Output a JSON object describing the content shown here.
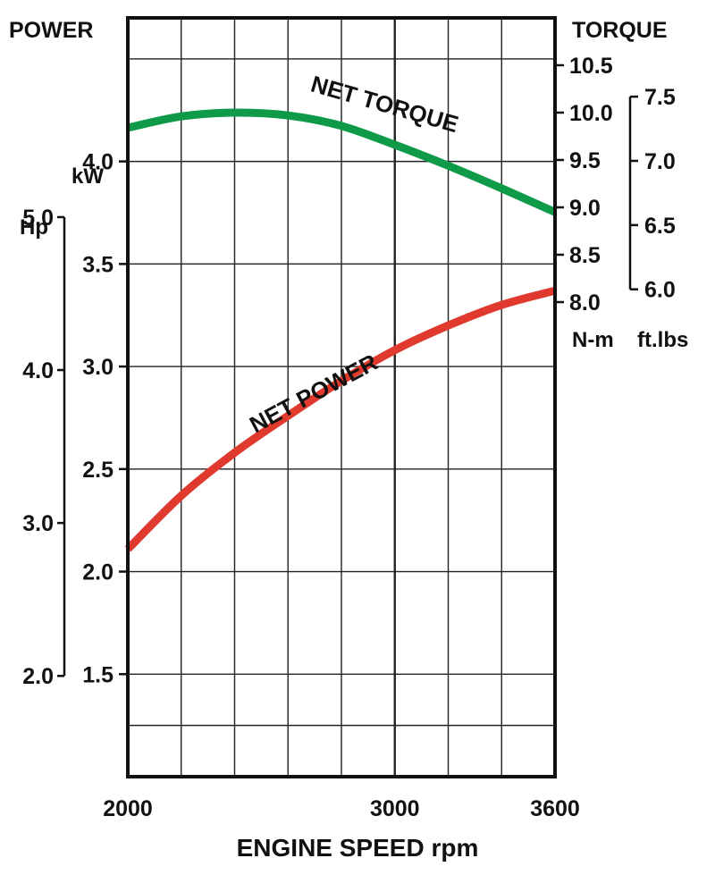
{
  "chart_data": {
    "type": "line",
    "title": "",
    "xlabel": "ENGINE SPEED rpm",
    "x_ticks": [
      2000,
      3000,
      3600
    ],
    "xlim": [
      2000,
      3600
    ],
    "grid": true,
    "left_axis": {
      "title": "POWER",
      "kw_unit": "kW",
      "kw_range": [
        1.0,
        4.7
      ],
      "kw_ticks": [
        "1.5",
        "2.0",
        "2.5",
        "3.0",
        "3.5",
        "4.0"
      ],
      "hp_unit": "Hp",
      "hp_ticks": [
        "2.0",
        "3.0",
        "4.0",
        "5.0"
      ]
    },
    "right_axis": {
      "title": "TORQUE",
      "nm_unit": "N-m",
      "nm_range": [
        8.0,
        10.5
      ],
      "nm_ticks": [
        "8.0",
        "8.5",
        "9.0",
        "9.5",
        "10.0",
        "10.5"
      ],
      "ftlb_unit": "ft.lbs",
      "ftlb_ticks": [
        "6.0",
        "6.5",
        "7.0",
        "7.5"
      ]
    },
    "series": [
      {
        "name": "NET TORQUE",
        "axis": "torque_nm",
        "color": "#0f9a4a",
        "x": [
          2000,
          2200,
          2400,
          2600,
          2800,
          3000,
          3200,
          3400,
          3600
        ],
        "y": [
          9.84,
          9.96,
          10.0,
          9.97,
          9.86,
          9.66,
          9.44,
          9.2,
          8.95
        ]
      },
      {
        "name": "NET POWER",
        "axis": "power_kw",
        "color": "#e03a2e",
        "x": [
          2000,
          2200,
          2400,
          2600,
          2800,
          3000,
          3200,
          3400,
          3600
        ],
        "y": [
          2.11,
          2.37,
          2.58,
          2.76,
          2.93,
          3.08,
          3.2,
          3.3,
          3.37
        ]
      }
    ]
  }
}
